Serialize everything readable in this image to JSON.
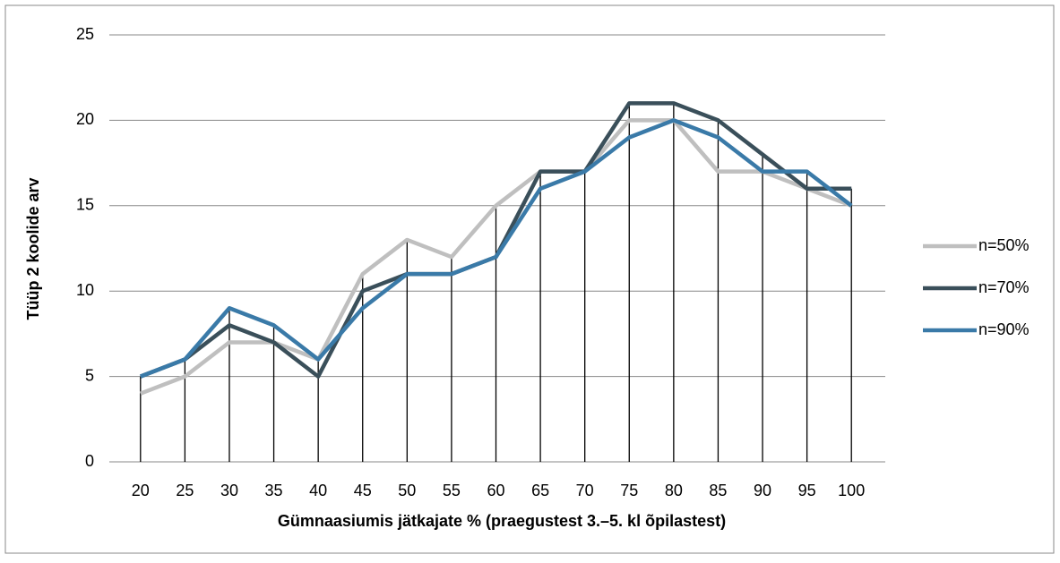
{
  "chart_data": {
    "type": "line",
    "x_label": "Gümnaasiumis jätkajate % (praegustest 3.–5. kl õpilastest)",
    "y_label": "Tüüp 2 koolide arv",
    "categories": [
      "20",
      "25",
      "30",
      "35",
      "40",
      "45",
      "50",
      "55",
      "60",
      "65",
      "70",
      "75",
      "80",
      "85",
      "90",
      "95",
      "100"
    ],
    "series": [
      {
        "name": "n=50%",
        "color": "#bfbfbf",
        "values": [
          4,
          5,
          7,
          7,
          6,
          11,
          13,
          12,
          15,
          17,
          17,
          20,
          20,
          17,
          17,
          16,
          15
        ]
      },
      {
        "name": "n=70%",
        "color": "#3a4f5a",
        "values": [
          5,
          6,
          8,
          7,
          5,
          10,
          11,
          11,
          12,
          17,
          17,
          21,
          21,
          20,
          18,
          16,
          16
        ]
      },
      {
        "name": "n=90%",
        "color": "#3a7aa8",
        "values": [
          5,
          6,
          9,
          8,
          6,
          9,
          11,
          11,
          12,
          16,
          17,
          19,
          20,
          19,
          17,
          17,
          15
        ]
      }
    ],
    "ylim": [
      0,
      25
    ],
    "yticks": [
      0,
      5,
      10,
      15,
      20,
      25
    ],
    "grid": true,
    "legend": "right"
  }
}
